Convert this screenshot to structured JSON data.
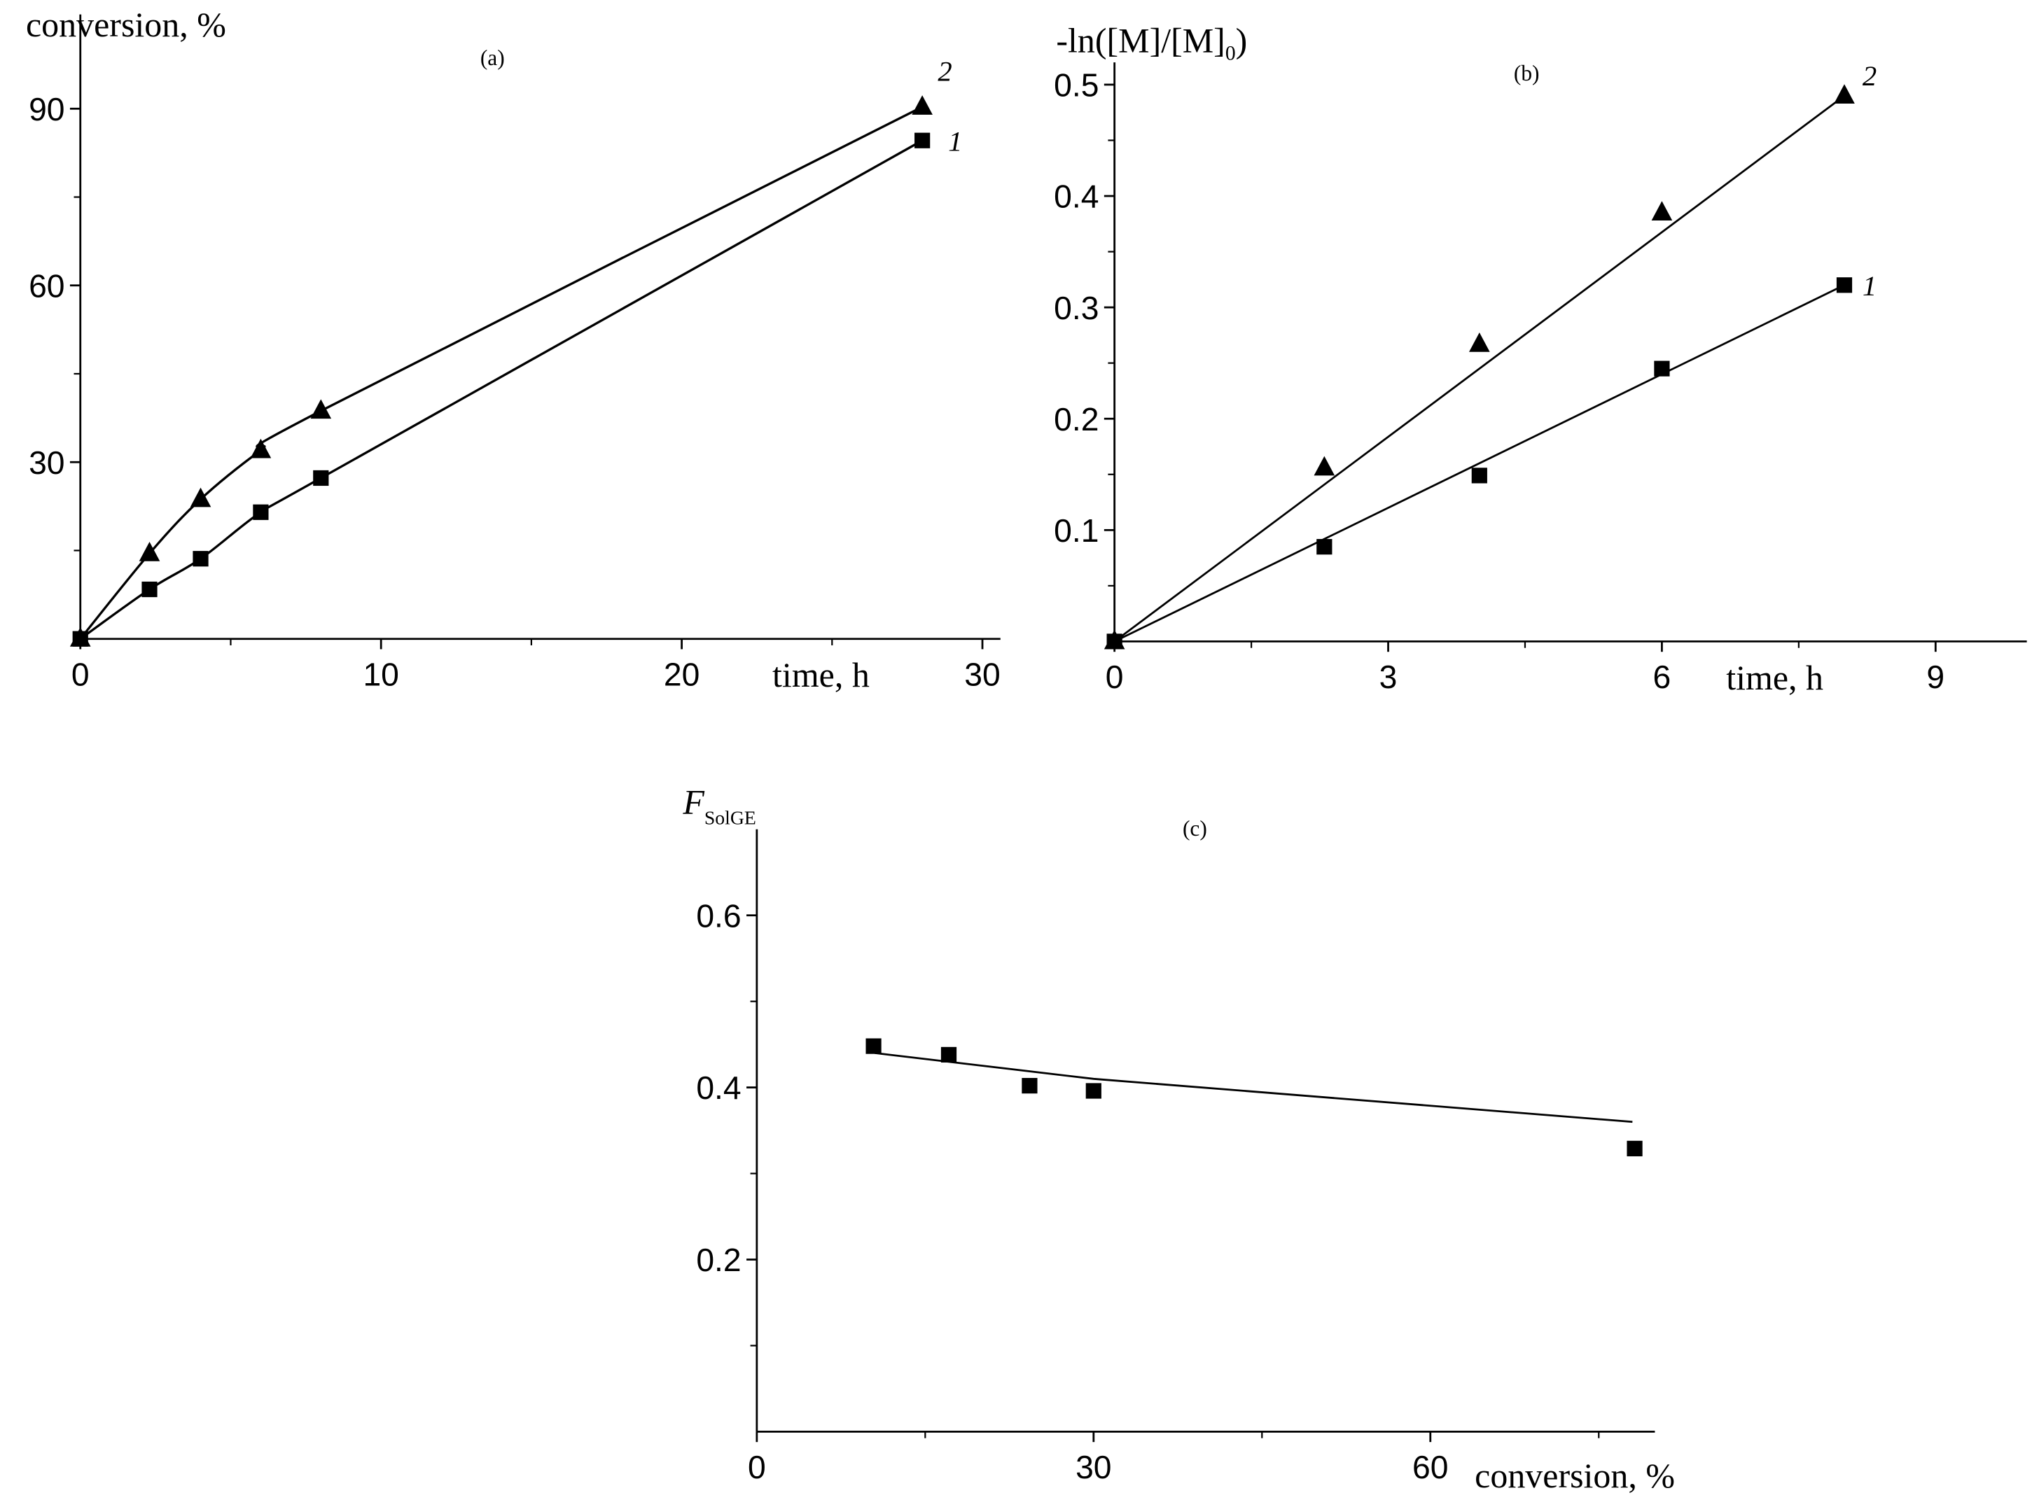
{
  "chart_data": [
    {
      "type": "line",
      "title": "(a)",
      "y_label": "conversion, %",
      "x_label": "time, h",
      "x": [
        0,
        2.3,
        4,
        6,
        8,
        28
      ],
      "series": [
        {
          "name": "1",
          "marker": "square",
          "color": "#000000",
          "values": [
            0,
            8.4,
            13.6,
            21.5,
            27.3,
            84.6
          ]
        },
        {
          "name": "2",
          "marker": "triangle",
          "color": "#000000",
          "values": [
            0,
            14.5,
            23.7,
            32,
            38.7,
            90.3
          ]
        }
      ],
      "xlim": [
        0,
        30.6
      ],
      "ylim": [
        0,
        106
      ],
      "xticks": [
        0,
        10,
        20,
        30
      ],
      "yticks": [
        30,
        60,
        90
      ],
      "minor_xticks": [
        5,
        15,
        25
      ],
      "minor_yticks": [
        15,
        45,
        75
      ],
      "smooth": true
    },
    {
      "type": "scatter",
      "title": "(b)",
      "y_label": "-ln([M]/[M]",
      "y_label_sub": "0",
      "y_label_end": ")",
      "x_label": "time, h",
      "x": [
        0,
        2.3,
        4,
        6,
        8
      ],
      "series": [
        {
          "name": "1",
          "marker": "square",
          "color": "#000000",
          "values": [
            0,
            0.085,
            0.149,
            0.245,
            0.32
          ],
          "fit": {
            "x": [
              0,
              8
            ],
            "values": [
              0,
              0.32
            ]
          }
        },
        {
          "name": "2",
          "marker": "triangle",
          "color": "#000000",
          "values": [
            0,
            0.156,
            0.267,
            0.385,
            0.49
          ],
          "fit": {
            "x": [
              0,
              8
            ],
            "values": [
              0,
              0.49
            ]
          }
        }
      ],
      "xlim": [
        0,
        10
      ],
      "ylim": [
        0,
        0.52
      ],
      "xticks": [
        0,
        3,
        6,
        9
      ],
      "yticks": [
        0.1,
        0.2,
        0.3,
        0.4,
        0.5
      ],
      "minor_xticks": [
        1.5,
        4.5,
        7.5
      ],
      "minor_yticks": [
        0.05,
        0.15,
        0.25,
        0.35,
        0.45
      ]
    },
    {
      "type": "scatter",
      "title": "(c)",
      "y_label": "F",
      "y_label_sub": "SolGE",
      "x_label": "conversion, %",
      "x": [
        10.4,
        17.1,
        24.3,
        30,
        78.2
      ],
      "series": [
        {
          "marker": "square",
          "color": "#000000",
          "values": [
            0.448,
            0.438,
            0.402,
            0.396,
            0.329
          ],
          "fit": {
            "x": [
              10.5,
              30,
              78
            ],
            "values": [
              0.44,
              0.41,
              0.36
            ]
          }
        }
      ],
      "xlim": [
        0,
        80
      ],
      "ylim": [
        0,
        0.7
      ],
      "xticks": [
        0,
        30,
        60
      ],
      "yticks": [
        0.2,
        0.4,
        0.6
      ],
      "minor_xticks": [
        15,
        45,
        75
      ],
      "minor_yticks": [
        0.1,
        0.3,
        0.5
      ]
    }
  ]
}
